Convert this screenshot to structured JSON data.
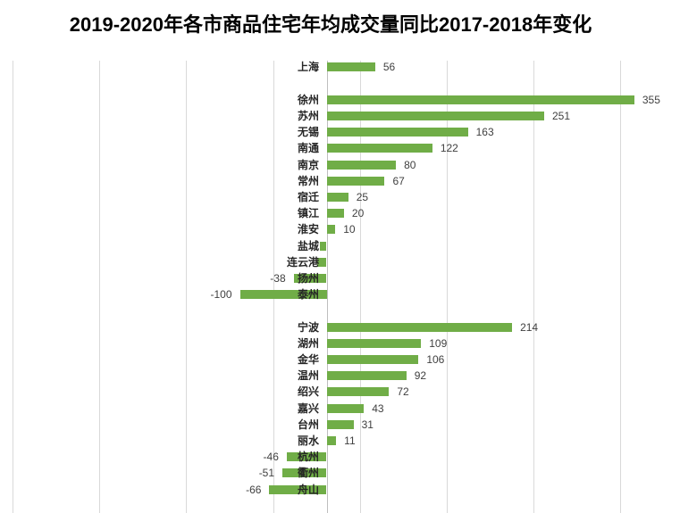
{
  "chart_data": {
    "type": "bar",
    "orientation": "horizontal",
    "title": "2019-2020年各市商品住宅年均成交量同比2017-2018年变化",
    "bar_color": "#70AD47",
    "gridline_color": "#D9D9D9",
    "axis_line_color": "#BFBFBF",
    "legend": "none",
    "grid": "vertical light-gray gridlines; zero axis line between positive and negative bars; no visible axis tick labels",
    "xlim_estimate": [
      -360,
      405
    ],
    "rows": [
      {
        "city": "上海",
        "value": 56,
        "label": "56"
      },
      {
        "city": "",
        "value": null,
        "label": ""
      },
      {
        "city": "徐州",
        "value": 355,
        "label": "355"
      },
      {
        "city": "苏州",
        "value": 251,
        "label": "251"
      },
      {
        "city": "无锡",
        "value": 163,
        "label": "163"
      },
      {
        "city": "南通",
        "value": 122,
        "label": "122"
      },
      {
        "city": "南京",
        "value": 80,
        "label": "80"
      },
      {
        "city": "常州",
        "value": 67,
        "label": "67"
      },
      {
        "city": "宿迁",
        "value": 25,
        "label": "25"
      },
      {
        "city": "镇江",
        "value": 20,
        "label": "20"
      },
      {
        "city": "淮安",
        "value": 10,
        "label": "10"
      },
      {
        "city": "盐城",
        "value": -8,
        "label": "",
        "estimated": true
      },
      {
        "city": "连云港",
        "value": -11,
        "label": "",
        "estimated": true
      },
      {
        "city": "扬州",
        "value": -38,
        "label": "-38"
      },
      {
        "city": "泰州",
        "value": -100,
        "label": "-100"
      },
      {
        "city": "",
        "value": null,
        "label": ""
      },
      {
        "city": "宁波",
        "value": 214,
        "label": "214"
      },
      {
        "city": "湖州",
        "value": 109,
        "label": "109"
      },
      {
        "city": "金华",
        "value": 106,
        "label": "106"
      },
      {
        "city": "温州",
        "value": 92,
        "label": "92"
      },
      {
        "city": "绍兴",
        "value": 72,
        "label": "72"
      },
      {
        "city": "嘉兴",
        "value": 43,
        "label": "43"
      },
      {
        "city": "台州",
        "value": 31,
        "label": "31"
      },
      {
        "city": "丽水",
        "value": 11,
        "label": "11"
      },
      {
        "city": "杭州",
        "value": -46,
        "label": "-46"
      },
      {
        "city": "衢州",
        "value": -51,
        "label": "-51"
      },
      {
        "city": "舟山",
        "value": -66,
        "label": "-66"
      }
    ]
  }
}
